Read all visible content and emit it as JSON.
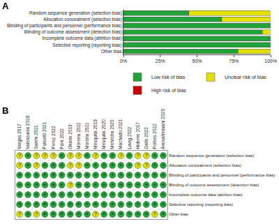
{
  "chart_data": [
    {
      "label": "A",
      "type": "bar",
      "orientation": "horizontal",
      "stacked": true,
      "grid": false,
      "legend": "bottom",
      "categories": [
        "Random sequence generation (selection bias)",
        "Allocation concealment (selection bias)",
        "Blinding of participants and personnel (performance bias)",
        "Blinding of outcome assessment (detection bias)",
        "Incomplete outcome data (attrition bias)",
        "Selective reporting (reporting bias)",
        "Other bias"
      ],
      "series": [
        {
          "name": "Low risk of bias",
          "color": "#22a33a",
          "values": [
            44.4,
            66.7,
            100,
            94.4,
            100,
            100,
            77.8
          ]
        },
        {
          "name": "Unclear risk of bias",
          "color": "#e3e000",
          "values": [
            55.6,
            33.3,
            0,
            5.6,
            0,
            0,
            22.2
          ]
        },
        {
          "name": "High risk of bias",
          "color": "#cc0000",
          "values": [
            0,
            0,
            0,
            0,
            0,
            0,
            0
          ]
        }
      ],
      "xlim": [
        0,
        100
      ],
      "xticks": [
        {
          "value": 0,
          "label": "0%"
        },
        {
          "value": 25,
          "label": "25%"
        },
        {
          "value": 50,
          "label": "50%"
        },
        {
          "value": 75,
          "label": "75%"
        },
        {
          "value": 100,
          "label": "100%"
        }
      ]
    },
    {
      "label": "B",
      "type": "matrix",
      "columns": [
        "Vargas 2017",
        "Valenzuela 2018",
        "Salehi 2021",
        "Pulisetti 2021",
        "Perez 2022",
        "Park 2022",
        "Okano 2013",
        "Moreira 2022",
        "Moreira 2021",
        "Mesquita 2019",
        "Mesquita 2020",
        "Mehrotra 2020",
        "Machado 2021",
        "Liang 2022",
        "Hideme 2017",
        "Gallo 2022",
        "Forbes 2022",
        "Anoushiravani 2023"
      ],
      "rows": [
        "Random sequence generation (selection bias)",
        "Allocation concealment (selection bias)",
        "Blinding of participants and personnel (performance bias)",
        "Blinding of outcome assessment (detection bias)",
        "Incomplete outcome data (attrition bias)",
        "Selective reporting (reporting bias)",
        "Other bias"
      ],
      "key": [
        {
          "symbol": "+",
          "color": "#22a33a"
        },
        {
          "symbol": "?",
          "color": "#e3e000"
        }
      ],
      "cells": [
        [
          "?",
          "+",
          "?",
          "?",
          "?",
          "+",
          "?",
          "?",
          "+",
          "?",
          "+",
          "+",
          "?",
          "+",
          "?",
          "?",
          "+",
          "+"
        ],
        [
          "?",
          "+",
          "?",
          "+",
          "+",
          "+",
          "?",
          "?",
          "+",
          "+",
          "+",
          "+",
          "+",
          "+",
          "?",
          "?",
          "+",
          "+"
        ],
        [
          "+",
          "+",
          "+",
          "+",
          "+",
          "+",
          "+",
          "+",
          "+",
          "+",
          "+",
          "+",
          "+",
          "+",
          "+",
          "+",
          "+",
          "+"
        ],
        [
          "+",
          "+",
          "+",
          "+",
          "+",
          "+",
          "?",
          "+",
          "+",
          "+",
          "+",
          "+",
          "+",
          "+",
          "+",
          "+",
          "+",
          "+"
        ],
        [
          "+",
          "+",
          "+",
          "+",
          "+",
          "+",
          "+",
          "+",
          "+",
          "+",
          "+",
          "+",
          "+",
          "+",
          "+",
          "+",
          "+",
          "+"
        ],
        [
          "+",
          "+",
          "+",
          "+",
          "+",
          "+",
          "+",
          "+",
          "+",
          "+",
          "+",
          "+",
          "+",
          "+",
          "+",
          "+",
          "+",
          "+"
        ],
        [
          "?",
          "+",
          "?",
          "+",
          "+",
          "+",
          "+",
          "+",
          "+",
          "?",
          "+",
          "+",
          "+",
          "+",
          "+",
          "+",
          "?",
          "+"
        ]
      ]
    }
  ]
}
